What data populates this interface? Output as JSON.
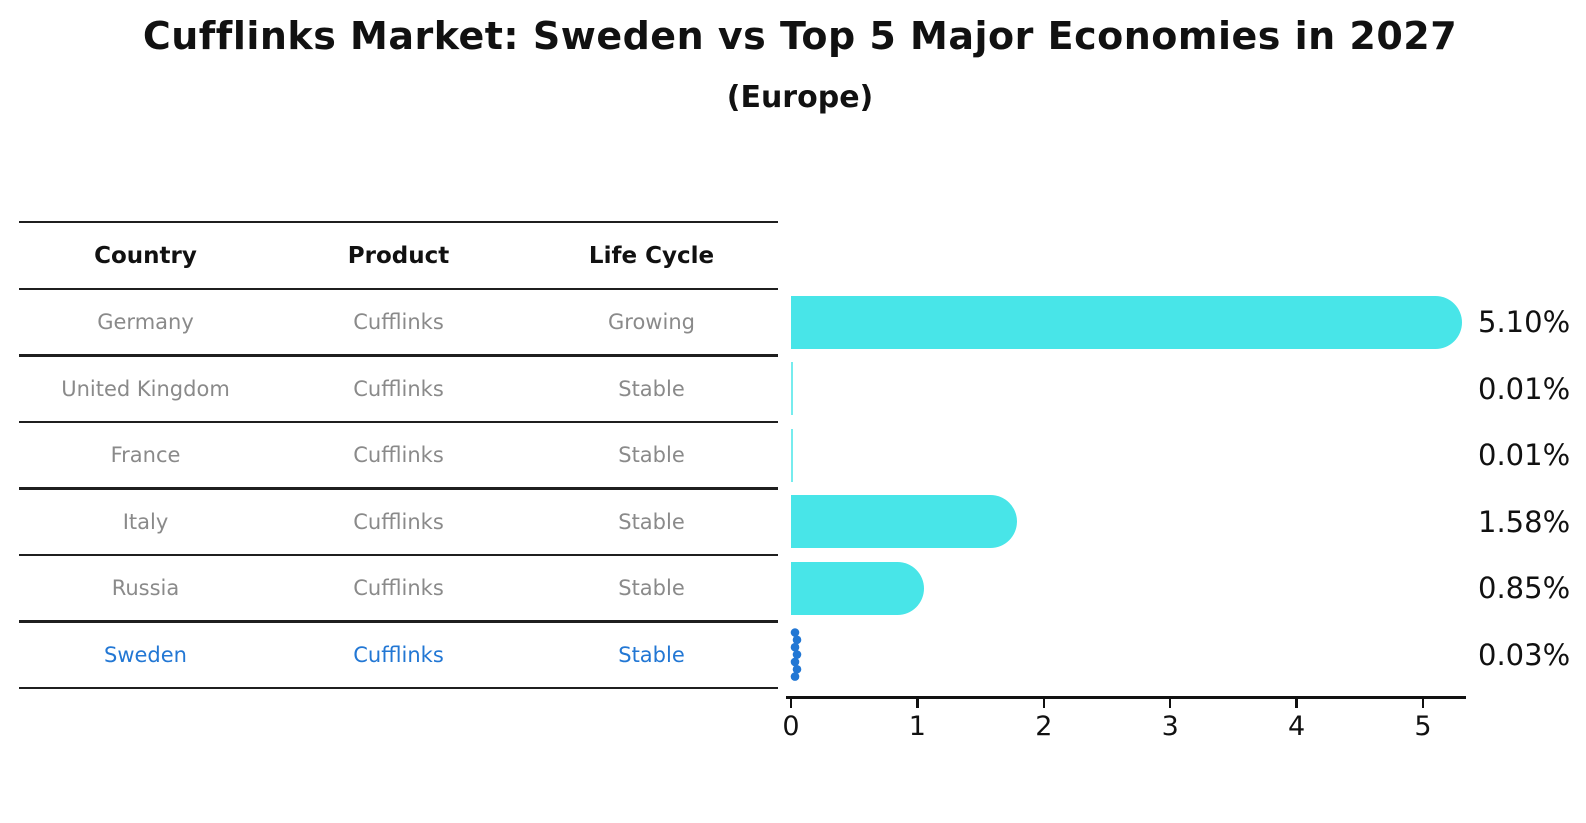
{
  "title": "Cufflinks Market: Sweden vs Top 5 Major Economies in 2027",
  "subtitle": "(Europe)",
  "table": {
    "headers": [
      "Country",
      "Product",
      "Life Cycle"
    ],
    "rows": [
      {
        "country": "Germany",
        "product": "Cufflinks",
        "life_cycle": "Growing",
        "highlighted": false
      },
      {
        "country": "United Kingdom",
        "product": "Cufflinks",
        "life_cycle": "Stable",
        "highlighted": false
      },
      {
        "country": "France",
        "product": "Cufflinks",
        "life_cycle": "Stable",
        "highlighted": false
      },
      {
        "country": "Italy",
        "product": "Cufflinks",
        "life_cycle": "Stable",
        "highlighted": false
      },
      {
        "country": "Russia",
        "product": "Cufflinks",
        "life_cycle": "Stable",
        "highlighted": false
      },
      {
        "country": "Sweden",
        "product": "Cufflinks",
        "life_cycle": "Stable",
        "highlighted": true
      }
    ]
  },
  "chart_data": {
    "type": "bar",
    "orientation": "horizontal",
    "title": "Cufflinks Market: Sweden vs Top 5 Major Economies in 2027",
    "subtitle": "(Europe)",
    "categories": [
      "Germany",
      "United Kingdom",
      "France",
      "Italy",
      "Russia",
      "Sweden"
    ],
    "values": [
      5.1,
      0.01,
      0.01,
      1.58,
      0.85,
      0.03
    ],
    "value_labels": [
      "5.10%",
      "0.01%",
      "0.01%",
      "1.58%",
      "0.85%",
      "0.03%"
    ],
    "xlabel": "",
    "ylabel": "",
    "xlim": [
      0,
      5.3
    ],
    "xticks": [
      0,
      1,
      2,
      3,
      4,
      5
    ],
    "grid": false,
    "legend": false,
    "highlight_index": 5
  },
  "colors": {
    "bar": "#48e5e8",
    "highlight": "#2277d4",
    "row_text": "#8a8a8a",
    "header_text": "#111111",
    "axis": "#111111",
    "table_line": "#1f1f1f",
    "background": "#ffffff"
  }
}
